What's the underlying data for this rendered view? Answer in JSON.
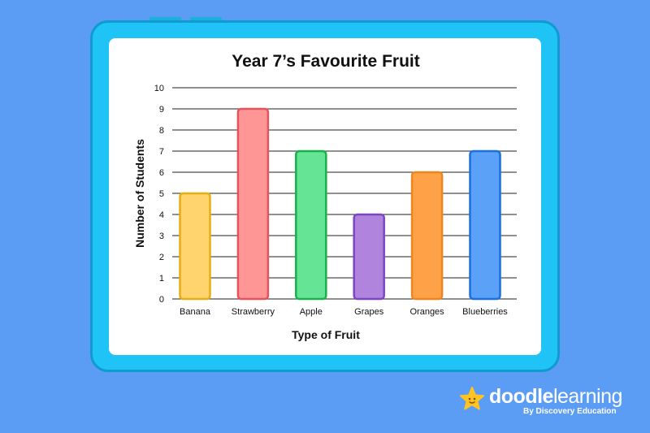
{
  "chart_data": {
    "type": "bar",
    "title": "Year 7’s Favourite Fruit",
    "xlabel": "Type of Fruit",
    "ylabel": "Number of Students",
    "categories": [
      "Banana",
      "Strawberry",
      "Apple",
      "Grapes",
      "Oranges",
      "Blueberries"
    ],
    "values": [
      5,
      9,
      7,
      4,
      6,
      7
    ],
    "ylim": [
      0,
      10
    ],
    "yticks": [
      "0",
      "1",
      "2",
      "3",
      "4",
      "5",
      "6",
      "7",
      "8",
      "9",
      "10"
    ],
    "grid": true,
    "bar_fill_colors": [
      "#ffd46e",
      "#ff9696",
      "#66e495",
      "#b083dc",
      "#ffa247",
      "#5aa1f7"
    ],
    "bar_stroke_colors": [
      "#e8ad10",
      "#e8525a",
      "#18b249",
      "#7a46c6",
      "#ef8520",
      "#1b6fe0"
    ]
  },
  "branding": {
    "logo_text_bold": "doodle",
    "logo_text_light": "learning",
    "logo_subtitle": "By Discovery Education",
    "logo_icon": "star-face-icon"
  },
  "colors": {
    "background": "#5b9cf4",
    "board": "#1fc3f5",
    "board_border": "#0f9ad0",
    "logo_star": "#ffc323"
  }
}
